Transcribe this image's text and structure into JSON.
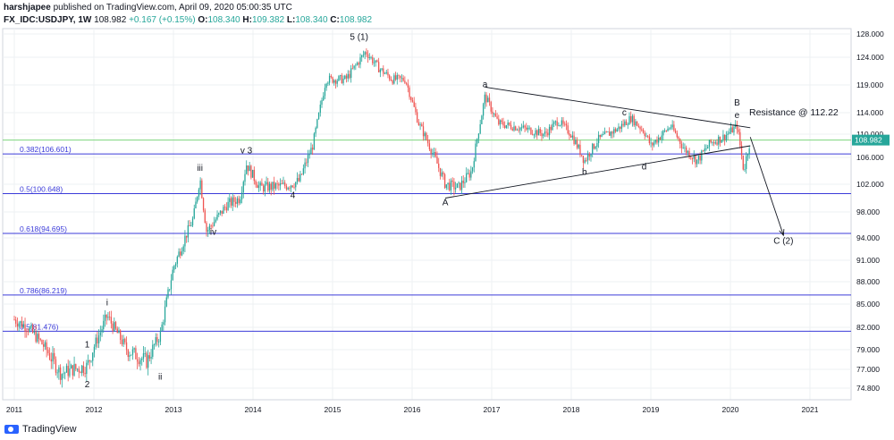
{
  "header": {
    "publisher": "harshjapee",
    "published_text": "published on TradingView.com, April 09, 2020 05:00:35 UTC"
  },
  "symbol_row": {
    "symbol": "FX_IDC:USDJPY, 1W",
    "last": "108.982",
    "change": "+0.167 (+0.15%)",
    "o_label": "O:",
    "o": "108.340",
    "h_label": "H:",
    "h": "109.382",
    "l_label": "L:",
    "l": "108.340",
    "c_label": "C:",
    "c": "108.982"
  },
  "footer": {
    "brand": "TradingView"
  },
  "colors": {
    "up": "#26a69a",
    "down": "#ef5350",
    "fib_line": "#3b3bd9",
    "price_line": "#7ed67e",
    "trend_line": "#131722",
    "grid": "#eef0f3"
  },
  "chart_data": {
    "type": "candlestick",
    "title": "",
    "xlabel": "",
    "ylabel": "",
    "x_ticks": [
      "2011",
      "2012",
      "2013",
      "2014",
      "2015",
      "2016",
      "2017",
      "2018",
      "2019",
      "2020",
      "2021"
    ],
    "y_ticks": [
      "128.000",
      "124.000",
      "119.000",
      "114.000",
      "110.000",
      "106.000",
      "102.000",
      "98.000",
      "94.000",
      "91.000",
      "88.000",
      "85.000",
      "82.000",
      "79.000",
      "77.000",
      "74.800"
    ],
    "current_price": "108.982",
    "fib_levels": [
      {
        "label": "0.382(106.601)",
        "value": 106.601
      },
      {
        "label": "0.5(100.648)",
        "value": 100.648
      },
      {
        "label": "0.618(94.695)",
        "value": 94.695
      },
      {
        "label": "0.786(86.219)",
        "value": 86.219
      },
      {
        "label": "0.5(81.476)",
        "value": 81.476
      }
    ],
    "close_path": [
      [
        "2011-01",
        83
      ],
      [
        "2011-03",
        82
      ],
      [
        "2011-05",
        80
      ],
      [
        "2011-08",
        76.5
      ],
      [
        "2011-10",
        77
      ],
      [
        "2011-12",
        77.3
      ],
      [
        "2012-03",
        83.5
      ],
      [
        "2012-06",
        79
      ],
      [
        "2012-09",
        77.8
      ],
      [
        "2012-11",
        81
      ],
      [
        "2013-01",
        90
      ],
      [
        "2013-04",
        97
      ],
      [
        "2013-05",
        103
      ],
      [
        "2013-06",
        95
      ],
      [
        "2013-09",
        99
      ],
      [
        "2013-11",
        100
      ],
      [
        "2013-12",
        105
      ],
      [
        "2014-02",
        101.5
      ],
      [
        "2014-06",
        101.8
      ],
      [
        "2014-08",
        102.5
      ],
      [
        "2014-10",
        108
      ],
      [
        "2014-12",
        120
      ],
      [
        "2015-03",
        120
      ],
      [
        "2015-06",
        125
      ],
      [
        "2015-08",
        122
      ],
      [
        "2015-10",
        120
      ],
      [
        "2015-12",
        120
      ],
      [
        "2016-02",
        112
      ],
      [
        "2016-06",
        102
      ],
      [
        "2016-08",
        101.5
      ],
      [
        "2016-10",
        104
      ],
      [
        "2016-12",
        117
      ],
      [
        "2017-02",
        112
      ],
      [
        "2017-06",
        111
      ],
      [
        "2017-09",
        110
      ],
      [
        "2017-11",
        112.5
      ],
      [
        "2018-01",
        110
      ],
      [
        "2018-03",
        105.5
      ],
      [
        "2018-05",
        109
      ],
      [
        "2018-08",
        111
      ],
      [
        "2018-10",
        113
      ],
      [
        "2018-12",
        110.5
      ],
      [
        "2019-01",
        108
      ],
      [
        "2019-04",
        111.5
      ],
      [
        "2019-06",
        107.5
      ],
      [
        "2019-08",
        105.5
      ],
      [
        "2019-10",
        108.5
      ],
      [
        "2019-12",
        109.5
      ],
      [
        "2020-02",
        111.5
      ],
      [
        "2020-03",
        104
      ],
      [
        "2020-04",
        108.98
      ]
    ],
    "wave_labels": [
      {
        "text": "1",
        "date": "2011-12",
        "price": 79.3
      },
      {
        "text": "2",
        "date": "2011-12",
        "price": 74.9
      },
      {
        "text": "i",
        "date": "2012-03",
        "price": 84.8
      },
      {
        "text": "ii",
        "date": "2012-11",
        "price": 75.8
      },
      {
        "text": "iii",
        "date": "2013-05",
        "price": 104
      },
      {
        "text": "iv",
        "date": "2013-07",
        "price": 94.5
      },
      {
        "text": "v 3",
        "date": "2013-12",
        "price": 106.7
      },
      {
        "text": "4",
        "date": "2014-07",
        "price": 100
      },
      {
        "text": "5 (1)",
        "date": "2015-05",
        "price": 127
      },
      {
        "text": "A",
        "date": "2016-06",
        "price": 99
      },
      {
        "text": "a",
        "date": "2016-12",
        "price": 118.6
      },
      {
        "text": "b",
        "date": "2018-03",
        "price": 103.4
      },
      {
        "text": "c",
        "date": "2018-09",
        "price": 113.5
      },
      {
        "text": "d",
        "date": "2018-12",
        "price": 104.2
      },
      {
        "text": "B",
        "date": "2020-02",
        "price": 115.3
      },
      {
        "text": "e",
        "date": "2020-02",
        "price": 113
      },
      {
        "text": "C (2)",
        "date": "2020-09",
        "price": 93.2
      }
    ],
    "annotation": "Resistance @ 112.22",
    "trend_lines": [
      {
        "from": [
          "2016-12",
          118.6
        ],
        "to": [
          "2020-04",
          111.2
        ]
      },
      {
        "from": [
          "2016-06",
          100
        ],
        "to": [
          "2020-04",
          108
        ]
      },
      {
        "from": [
          "2020-04",
          109.5
        ],
        "to": [
          "2020-09",
          94.4
        ],
        "arrow": true
      }
    ]
  }
}
